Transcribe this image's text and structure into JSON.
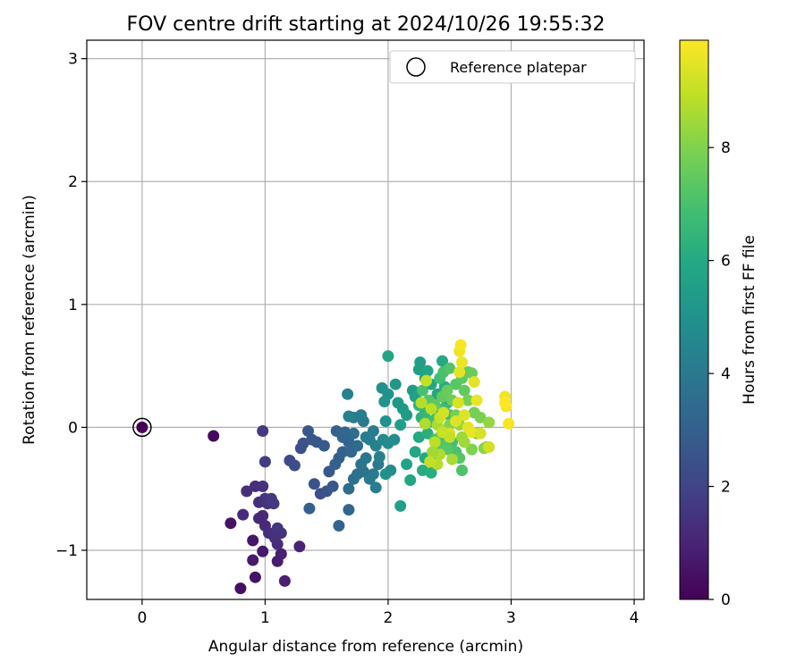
{
  "chart_data": {
    "type": "scatter",
    "title": "FOV centre drift starting at 2024/10/26 19:55:32",
    "xlabel": "Angular distance from reference (arcmin)",
    "ylabel": "Rotation from reference (arcmin)",
    "xlim": [
      -0.45,
      4.08
    ],
    "ylim": [
      -1.4,
      3.15
    ],
    "xticks": [
      0,
      1,
      2,
      3,
      4
    ],
    "yticks": [
      -1,
      0,
      1,
      2,
      3
    ],
    "grid": true,
    "legend": {
      "placement": "top-right",
      "entries": [
        "Reference platepar"
      ]
    },
    "reference_point": {
      "x": 0,
      "y": 0
    },
    "colorbar": {
      "label": "Hours from first FF file",
      "colormap": "viridis",
      "range": [
        0,
        9.9
      ],
      "ticks": [
        0,
        2,
        4,
        6,
        8
      ]
    },
    "points": [
      [
        0.0,
        0.0,
        0.0
      ],
      [
        0.58,
        -0.07,
        0.3
      ],
      [
        0.72,
        -0.78,
        0.5
      ],
      [
        0.8,
        -1.31,
        0.4
      ],
      [
        0.9,
        -0.92,
        0.6
      ],
      [
        0.98,
        -1.01,
        0.7
      ],
      [
        1.1,
        -1.09,
        0.8
      ],
      [
        1.16,
        -1.25,
        0.9
      ],
      [
        1.28,
        -0.97,
        1.0
      ],
      [
        0.9,
        -1.08,
        0.7
      ],
      [
        0.92,
        -1.22,
        0.5
      ],
      [
        1.13,
        -1.03,
        0.9
      ],
      [
        0.82,
        -0.71,
        1.2
      ],
      [
        0.85,
        -0.52,
        1.3
      ],
      [
        0.92,
        -0.48,
        1.3
      ],
      [
        0.98,
        -0.48,
        1.4
      ],
      [
        0.95,
        -0.61,
        1.3
      ],
      [
        1.0,
        -0.58,
        1.5
      ],
      [
        1.02,
        -0.62,
        1.5
      ],
      [
        1.05,
        -0.58,
        1.6
      ],
      [
        1.07,
        -0.62,
        1.6
      ],
      [
        0.98,
        -0.72,
        1.2
      ],
      [
        0.95,
        -0.74,
        1.1
      ],
      [
        1.0,
        -0.8,
        1.2
      ],
      [
        1.03,
        -0.86,
        1.3
      ],
      [
        1.08,
        -0.86,
        1.4
      ],
      [
        1.1,
        -0.82,
        1.5
      ],
      [
        1.13,
        -0.86,
        1.5
      ],
      [
        1.08,
        -0.9,
        1.4
      ],
      [
        1.1,
        -0.95,
        1.3
      ],
      [
        0.98,
        -0.03,
        1.7
      ],
      [
        1.0,
        -0.28,
        1.8
      ],
      [
        1.2,
        -0.27,
        2.2
      ],
      [
        1.24,
        -0.31,
        2.3
      ],
      [
        1.29,
        -0.17,
        2.4
      ],
      [
        1.31,
        -0.13,
        2.5
      ],
      [
        1.38,
        -0.1,
        2.6
      ],
      [
        1.35,
        -0.03,
        2.7
      ],
      [
        1.42,
        -0.12,
        2.7
      ],
      [
        1.48,
        -0.15,
        2.8
      ],
      [
        1.4,
        -0.46,
        2.5
      ],
      [
        1.45,
        -0.54,
        2.4
      ],
      [
        1.5,
        -0.52,
        2.5
      ],
      [
        1.55,
        -0.48,
        2.7
      ],
      [
        1.52,
        -0.36,
        2.8
      ],
      [
        1.57,
        -0.3,
        3.0
      ],
      [
        1.6,
        -0.25,
        3.0
      ],
      [
        1.63,
        -0.2,
        3.1
      ],
      [
        1.58,
        -0.03,
        3.1
      ],
      [
        1.63,
        -0.08,
        3.2
      ],
      [
        1.65,
        -0.04,
        3.3
      ],
      [
        1.68,
        -0.12,
        3.2
      ],
      [
        1.7,
        -0.2,
        3.3
      ],
      [
        1.72,
        -0.05,
        3.5
      ],
      [
        1.75,
        -0.15,
        3.4
      ],
      [
        1.6,
        -0.8,
        3.2
      ],
      [
        1.68,
        -0.67,
        3.3
      ],
      [
        1.36,
        -0.66,
        3.0
      ],
      [
        1.68,
        -0.5,
        3.5
      ],
      [
        1.72,
        -0.42,
        3.6
      ],
      [
        1.75,
        -0.38,
        3.7
      ],
      [
        1.78,
        -0.3,
        3.8
      ],
      [
        1.8,
        -0.36,
        3.8
      ],
      [
        1.82,
        -0.25,
        3.9
      ],
      [
        1.85,
        -0.42,
        4.0
      ],
      [
        1.88,
        -0.38,
        4.0
      ],
      [
        1.9,
        -0.49,
        4.2
      ],
      [
        1.92,
        -0.3,
        4.0
      ],
      [
        1.85,
        -0.1,
        4.2
      ],
      [
        1.88,
        -0.03,
        4.1
      ],
      [
        1.8,
        0.05,
        4.0
      ],
      [
        1.78,
        0.1,
        4.1
      ],
      [
        1.82,
        -0.08,
        4.2
      ],
      [
        1.9,
        -0.15,
        4.3
      ],
      [
        1.93,
        -0.24,
        4.3
      ],
      [
        1.72,
        0.08,
        4.1
      ],
      [
        1.67,
        0.27,
        4.3
      ],
      [
        1.68,
        0.09,
        4.3
      ],
      [
        1.96,
        -0.1,
        4.6
      ],
      [
        2.0,
        -0.13,
        4.7
      ],
      [
        2.02,
        -0.35,
        4.8
      ],
      [
        1.98,
        -0.38,
        4.9
      ],
      [
        2.05,
        -0.1,
        4.8
      ],
      [
        1.95,
        0.32,
        4.9
      ],
      [
        1.98,
        0.05,
        5.0
      ],
      [
        2.0,
        0.27,
        5.0
      ],
      [
        2.06,
        0.35,
        5.2
      ],
      [
        2.08,
        0.2,
        5.3
      ],
      [
        2.12,
        0.15,
        5.3
      ],
      [
        2.15,
        0.1,
        5.4
      ],
      [
        2.1,
        0.02,
        5.5
      ],
      [
        2.2,
        0.3,
        5.4
      ],
      [
        2.22,
        0.25,
        5.6
      ],
      [
        2.25,
        0.47,
        5.6
      ],
      [
        2.26,
        0.53,
        5.5
      ],
      [
        2.3,
        0.4,
        5.7
      ],
      [
        2.32,
        0.46,
        5.8
      ],
      [
        2.35,
        0.35,
        5.9
      ],
      [
        2.4,
        0.27,
        5.9
      ],
      [
        2.44,
        0.54,
        6.0
      ],
      [
        2.46,
        0.33,
        6.1
      ],
      [
        2.48,
        0.2,
        6.0
      ],
      [
        1.97,
        0.21,
        5.1
      ],
      [
        2.0,
        0.58,
        5.8
      ],
      [
        2.1,
        -0.64,
        5.6
      ],
      [
        2.18,
        -0.43,
        5.8
      ],
      [
        2.15,
        -0.3,
        5.7
      ],
      [
        2.22,
        -0.2,
        5.9
      ],
      [
        2.25,
        -0.08,
        6.0
      ],
      [
        2.3,
        -0.25,
        6.0
      ],
      [
        2.28,
        -0.35,
        6.1
      ],
      [
        2.35,
        -0.37,
        6.2
      ],
      [
        2.38,
        -0.3,
        6.3
      ],
      [
        2.4,
        -0.22,
        6.4
      ],
      [
        2.32,
        -0.05,
        6.2
      ],
      [
        2.27,
        0.08,
        6.3
      ],
      [
        2.25,
        0.18,
        6.4
      ],
      [
        2.3,
        0.12,
        6.5
      ],
      [
        2.35,
        0.05,
        6.6
      ],
      [
        2.4,
        0.1,
        6.6
      ],
      [
        2.45,
        0.15,
        6.7
      ],
      [
        2.5,
        0.1,
        6.8
      ],
      [
        2.47,
        -0.05,
        6.8
      ],
      [
        2.52,
        -0.12,
        6.9
      ],
      [
        2.55,
        -0.2,
        7.0
      ],
      [
        2.6,
        -0.35,
        7.1
      ],
      [
        2.58,
        -0.25,
        7.2
      ],
      [
        2.42,
        0.4,
        6.9
      ],
      [
        2.45,
        0.45,
        7.0
      ],
      [
        2.5,
        0.48,
        7.2
      ],
      [
        2.55,
        0.35,
        7.3
      ],
      [
        2.6,
        0.4,
        7.4
      ],
      [
        2.65,
        0.45,
        7.5
      ],
      [
        2.68,
        0.44,
        7.6
      ],
      [
        2.62,
        0.3,
        7.5
      ],
      [
        2.65,
        0.22,
        7.8
      ],
      [
        2.7,
        0.12,
        7.8
      ],
      [
        2.75,
        0.08,
        7.9
      ],
      [
        2.72,
        -0.05,
        8.0
      ],
      [
        2.68,
        -0.18,
        8.0
      ],
      [
        2.78,
        -0.17,
        8.1
      ],
      [
        2.8,
        -0.16,
        8.2
      ],
      [
        2.82,
        0.04,
        8.3
      ],
      [
        2.36,
        0.05,
        6.8
      ],
      [
        2.38,
        -0.1,
        6.9
      ],
      [
        2.42,
        -0.08,
        7.0
      ],
      [
        2.44,
        -0.15,
        7.2
      ],
      [
        2.48,
        -0.18,
        7.3
      ],
      [
        2.28,
        0.3,
        7.0
      ],
      [
        2.33,
        0.22,
        7.2
      ],
      [
        2.38,
        0.18,
        7.4
      ],
      [
        2.44,
        0.25,
        7.5
      ],
      [
        2.48,
        0.3,
        7.6
      ],
      [
        2.52,
        0.22,
        7.7
      ],
      [
        2.55,
        0.1,
        7.8
      ],
      [
        2.5,
        0.02,
        8.0
      ],
      [
        2.46,
        -0.03,
        8.1
      ],
      [
        2.58,
        0.02,
        8.3
      ],
      [
        2.6,
        -0.08,
        8.4
      ],
      [
        2.62,
        -0.12,
        8.5
      ],
      [
        2.4,
        0.02,
        8.6
      ],
      [
        2.3,
        0.03,
        8.7
      ],
      [
        2.27,
        0.2,
        8.8
      ],
      [
        2.31,
        0.38,
        9.0
      ],
      [
        2.35,
        0.15,
        8.9
      ],
      [
        2.42,
        0.08,
        9.1
      ],
      [
        2.45,
        0.12,
        9.2
      ],
      [
        2.5,
        -0.05,
        9.3
      ],
      [
        2.55,
        0.05,
        9.4
      ],
      [
        2.58,
        0.45,
        9.5
      ],
      [
        2.6,
        0.53,
        9.6
      ],
      [
        2.58,
        0.62,
        9.7
      ],
      [
        2.59,
        0.67,
        9.8
      ],
      [
        2.57,
        0.2,
        9.3
      ],
      [
        2.62,
        0.1,
        9.4
      ],
      [
        2.65,
        0.0,
        9.5
      ],
      [
        2.68,
        -0.04,
        9.6
      ],
      [
        2.7,
        0.37,
        9.5
      ],
      [
        2.72,
        0.22,
        9.6
      ],
      [
        2.75,
        -0.05,
        9.3
      ],
      [
        2.82,
        -0.16,
        9.2
      ],
      [
        2.95,
        0.25,
        9.7
      ],
      [
        2.96,
        0.17,
        9.8
      ],
      [
        2.98,
        0.03,
        9.8
      ],
      [
        2.95,
        0.2,
        9.9
      ],
      [
        2.5,
        -0.08,
        9.0
      ],
      [
        2.44,
        -0.04,
        9.1
      ],
      [
        2.38,
        -0.12,
        8.9
      ],
      [
        2.42,
        -0.22,
        8.7
      ],
      [
        2.52,
        -0.26,
        8.6
      ],
      [
        2.4,
        -0.3,
        8.8
      ],
      [
        2.36,
        -0.2,
        8.5
      ],
      [
        2.34,
        -0.28,
        9.0
      ]
    ]
  }
}
